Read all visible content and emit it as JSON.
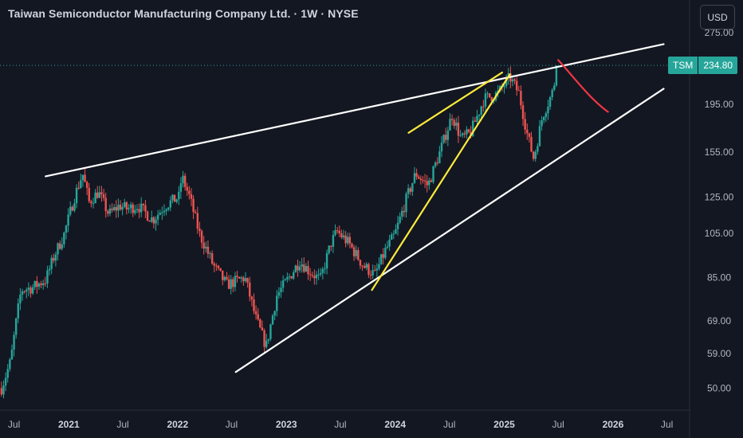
{
  "header": {
    "title": "Taiwan Semiconductor Manufacturing Company Ltd. · 1W · NYSE",
    "currency": "USD"
  },
  "price_tag": {
    "symbol": "TSM",
    "value": "234.80"
  },
  "colors": {
    "background": "#131722",
    "up": "#26a69a",
    "down": "#ef5350",
    "trend": "#ffffff",
    "wedge": "#ffeb3b",
    "forecast": "#f23645"
  },
  "chart_data": {
    "type": "candlestick",
    "title": "Taiwan Semiconductor Manufacturing Company Ltd. · 1W · NYSE",
    "scale": "log",
    "ylim": [
      48,
      300
    ],
    "xlim": [
      "2020-05-15",
      "2026-09-15"
    ],
    "y_ticks": [
      "275.00",
      "235.00",
      "195.00",
      "155.00",
      "125.00",
      "105.00",
      "85.00",
      "69.00",
      "59.00",
      "50.00"
    ],
    "y_tick_values": [
      275,
      235,
      195,
      155,
      125,
      105,
      85,
      69,
      59,
      50
    ],
    "x_ticks": [
      {
        "label": "Jul",
        "date": "2020-07-01",
        "year": false
      },
      {
        "label": "2021",
        "date": "2021-01-01",
        "year": true
      },
      {
        "label": "Jul",
        "date": "2021-07-01",
        "year": false
      },
      {
        "label": "2022",
        "date": "2022-01-01",
        "year": true
      },
      {
        "label": "Jul",
        "date": "2022-07-01",
        "year": false
      },
      {
        "label": "2023",
        "date": "2023-01-01",
        "year": true
      },
      {
        "label": "Jul",
        "date": "2023-07-01",
        "year": false
      },
      {
        "label": "2024",
        "date": "2024-01-01",
        "year": true
      },
      {
        "label": "Jul",
        "date": "2024-07-01",
        "year": false
      },
      {
        "label": "2025",
        "date": "2025-01-01",
        "year": true
      },
      {
        "label": "Jul",
        "date": "2025-07-01",
        "year": false
      },
      {
        "label": "2026",
        "date": "2026-01-01",
        "year": true
      },
      {
        "label": "Jul",
        "date": "2026-07-01",
        "year": false
      }
    ],
    "last_price": 234.8,
    "close_path": [
      [
        "2020-05-20",
        50
      ],
      [
        "2020-06-20",
        57
      ],
      [
        "2020-07-10",
        70
      ],
      [
        "2020-07-25",
        80
      ],
      [
        "2020-09-01",
        81
      ],
      [
        "2020-10-15",
        84
      ],
      [
        "2020-11-15",
        95
      ],
      [
        "2020-12-15",
        104
      ],
      [
        "2021-01-20",
        125
      ],
      [
        "2021-02-16",
        140
      ],
      [
        "2021-03-10",
        122
      ],
      [
        "2021-04-10",
        128
      ],
      [
        "2021-05-15",
        115
      ],
      [
        "2021-06-20",
        120
      ],
      [
        "2021-07-15",
        118
      ],
      [
        "2021-08-20",
        120
      ],
      [
        "2021-10-10",
        112
      ],
      [
        "2021-11-20",
        120
      ],
      [
        "2022-01-05",
        125
      ],
      [
        "2022-01-15",
        138
      ],
      [
        "2022-02-10",
        125
      ],
      [
        "2022-03-15",
        105
      ],
      [
        "2022-05-01",
        90
      ],
      [
        "2022-06-15",
        82
      ],
      [
        "2022-08-15",
        85
      ],
      [
        "2022-09-20",
        70
      ],
      [
        "2022-10-25",
        61
      ],
      [
        "2022-11-30",
        78
      ],
      [
        "2023-01-10",
        85
      ],
      [
        "2023-02-15",
        92
      ],
      [
        "2023-03-15",
        88
      ],
      [
        "2023-04-25",
        84
      ],
      [
        "2023-05-30",
        100
      ],
      [
        "2023-06-20",
        106
      ],
      [
        "2023-07-30",
        100
      ],
      [
        "2023-09-15",
        90
      ],
      [
        "2023-10-25",
        86
      ],
      [
        "2023-11-30",
        97
      ],
      [
        "2023-12-30",
        104
      ],
      [
        "2024-02-10",
        125
      ],
      [
        "2024-03-10",
        140
      ],
      [
        "2024-04-20",
        132
      ],
      [
        "2024-05-30",
        155
      ],
      [
        "2024-07-10",
        185
      ],
      [
        "2024-08-10",
        165
      ],
      [
        "2024-09-10",
        170
      ],
      [
        "2024-10-25",
        200
      ],
      [
        "2024-12-10",
        205
      ],
      [
        "2025-01-20",
        222
      ],
      [
        "2025-02-20",
        205
      ],
      [
        "2025-03-20",
        168
      ],
      [
        "2025-04-10",
        150
      ],
      [
        "2025-05-10",
        185
      ],
      [
        "2025-06-10",
        205
      ],
      [
        "2025-07-01",
        234.8
      ]
    ],
    "lines": [
      {
        "name": "upper-resistance",
        "color": "white",
        "from": [
          "2020-10-15",
          138
        ],
        "to": [
          "2026-06-20",
          260
        ]
      },
      {
        "name": "lower-support",
        "color": "white",
        "from": [
          "2022-07-15",
          54
        ],
        "to": [
          "2026-06-20",
          210
        ]
      },
      {
        "name": "yellow-rising-line",
        "color": "yellow",
        "from": [
          "2023-10-15",
          80
        ],
        "to": [
          "2025-01-20",
          225
        ]
      },
      {
        "name": "yellow-upper-line",
        "color": "yellow",
        "from": [
          "2024-02-15",
          170
        ],
        "to": [
          "2024-12-25",
          227
        ]
      }
    ],
    "forecast_curve": [
      [
        "2025-07-01",
        241
      ],
      [
        "2025-08-15",
        225
      ],
      [
        "2025-10-15",
        200
      ],
      [
        "2025-12-15",
        188
      ]
    ],
    "grid": false,
    "legend": "none"
  }
}
